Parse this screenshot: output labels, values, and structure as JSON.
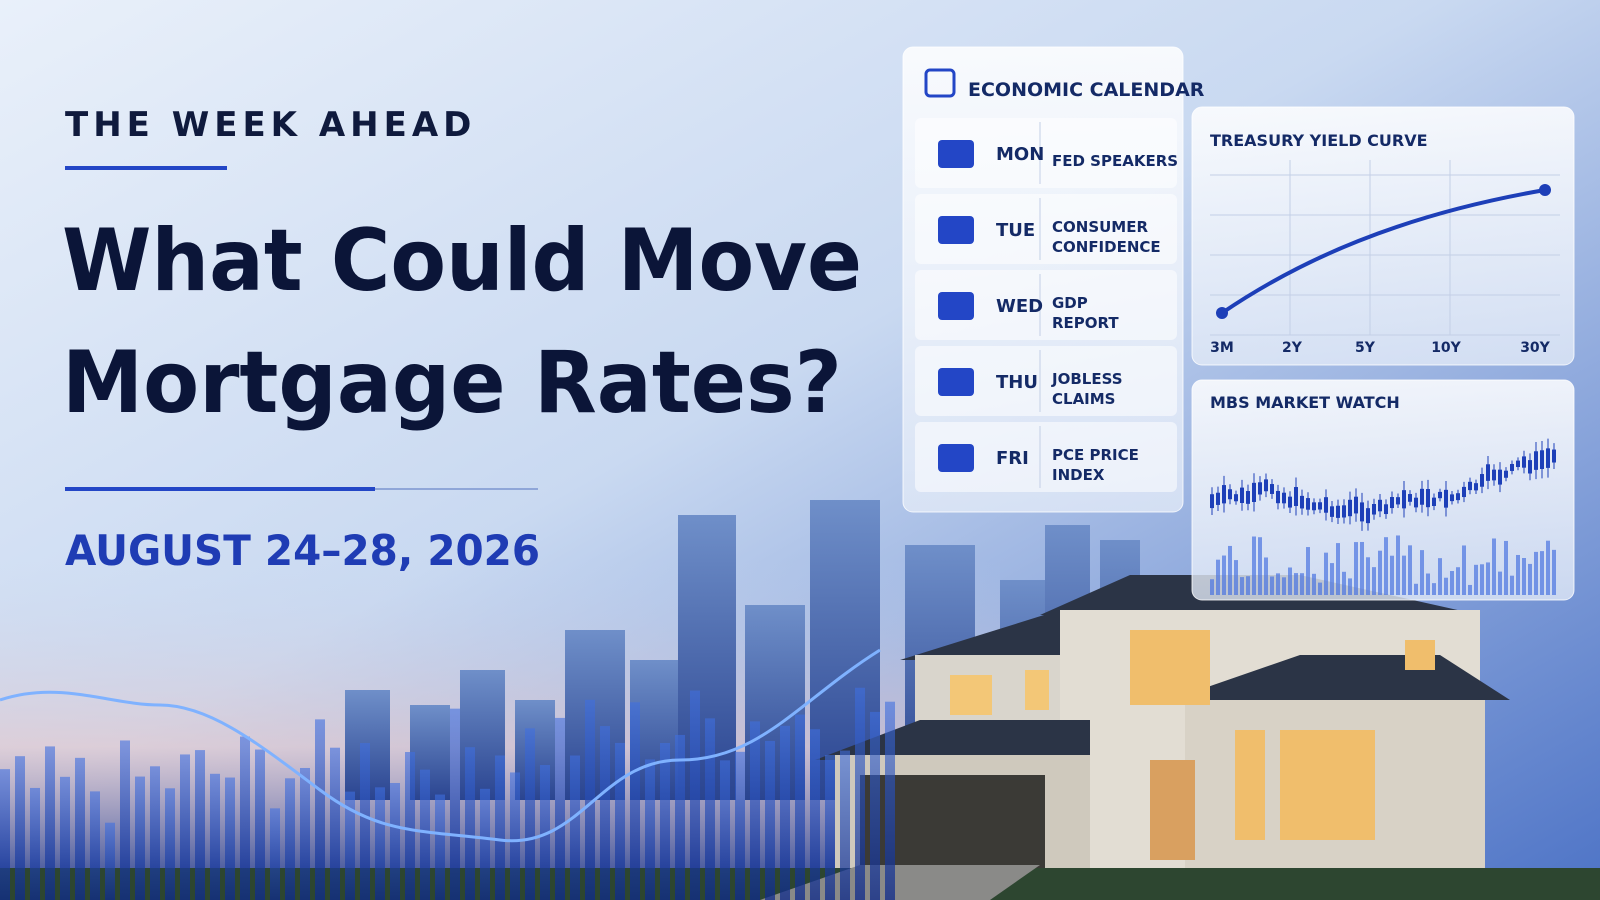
{
  "header": {
    "kicker": "THE WEEK AHEAD",
    "title_lines": [
      "What Could Move",
      "Mortgage Rates?"
    ],
    "date": "AUGUST 24–28, 2026"
  },
  "calendar": {
    "title": "ECONOMIC CALENDAR",
    "events": [
      {
        "day": "MON",
        "lines": [
          "FED SPEAKERS"
        ]
      },
      {
        "day": "TUE",
        "lines": [
          "CONSUMER",
          "CONFIDENCE"
        ]
      },
      {
        "day": "WED",
        "lines": [
          "GDP",
          "REPORT"
        ]
      },
      {
        "day": "THU",
        "lines": [
          "JOBLESS",
          "CLAIMS"
        ]
      },
      {
        "day": "FRI",
        "lines": [
          "PCE PRICE",
          "INDEX"
        ]
      }
    ]
  },
  "yield_curve": {
    "title": "TREASURY YIELD CURVE",
    "labels": [
      "3M",
      "2Y",
      "5Y",
      "10Y",
      "30Y"
    ]
  },
  "mbs": {
    "title": "MBS MARKET WATCH"
  }
}
